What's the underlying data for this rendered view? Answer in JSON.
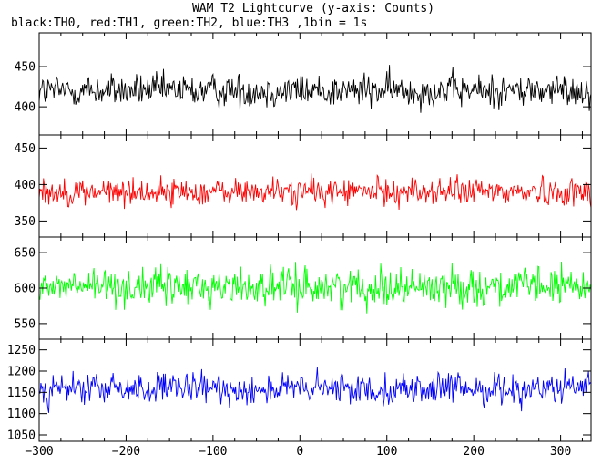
{
  "chart_data": {
    "type": "line",
    "title": "WAM T2 Lightcurve (y-axis: Counts)",
    "subtitle": "black:TH0, red:TH1, green:TH2, blue:TH3 ,1bin = 1s",
    "x_range": [
      -300,
      335
    ],
    "x_ticks": [
      -300,
      -200,
      -100,
      0,
      100,
      200,
      300
    ],
    "x_tick_labels": [
      "−300",
      "−200",
      "−100",
      "0",
      "100",
      "200",
      "300"
    ],
    "grid": false,
    "panels": [
      {
        "channel": "TH0",
        "color": "#000000",
        "ylim": [
          365,
          492
        ],
        "y_ticks": [
          400,
          450
        ],
        "y_tick_labels": [
          "400",
          "450"
        ],
        "mean": 420,
        "noise_amplitude": 22
      },
      {
        "channel": "TH1",
        "color": "#ff0000",
        "ylim": [
          328,
          468
        ],
        "y_ticks": [
          350,
          400,
          450
        ],
        "y_tick_labels": [
          "350",
          "400",
          "450"
        ],
        "mean": 390,
        "noise_amplitude": 20
      },
      {
        "channel": "TH2",
        "color": "#00ff00",
        "ylim": [
          528,
          672
        ],
        "y_ticks": [
          550,
          600,
          650
        ],
        "y_tick_labels": [
          "550",
          "600",
          "650"
        ],
        "mean": 602,
        "noise_amplitude": 28
      },
      {
        "channel": "TH3",
        "color": "#0000ff",
        "ylim": [
          1035,
          1275
        ],
        "y_ticks": [
          1050,
          1100,
          1150,
          1200,
          1250
        ],
        "y_tick_labels": [
          "1050",
          "1100",
          "1150",
          "1200",
          "1250"
        ],
        "mean": 1158,
        "noise_amplitude": 38
      }
    ]
  }
}
